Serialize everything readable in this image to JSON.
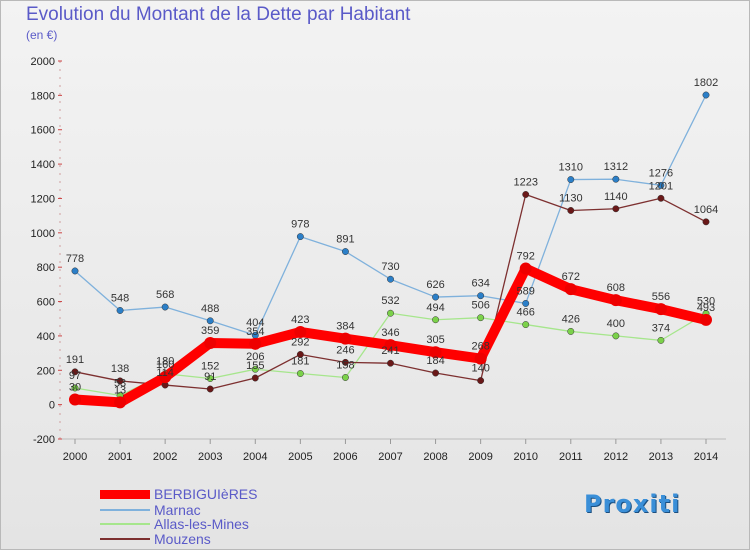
{
  "title": "Evolution du Montant de la Dette par Habitant",
  "subtitle": "(en €)",
  "logo_text": "Proxiti",
  "chart_data": {
    "type": "line",
    "x": [
      2000,
      2001,
      2002,
      2003,
      2004,
      2005,
      2006,
      2007,
      2008,
      2009,
      2010,
      2011,
      2012,
      2013,
      2014
    ],
    "ylim": [
      -200,
      2000
    ],
    "yticks": [
      -200,
      0,
      200,
      400,
      600,
      800,
      1000,
      1200,
      1400,
      1600,
      1800,
      2000
    ],
    "grid": "none",
    "legend": "bottom-left",
    "series": [
      {
        "name": "BERBIGUIèRES",
        "color": "#ff0000",
        "point_color": "#ee0000",
        "width": 10,
        "values": [
          30,
          13,
          160,
          359,
          354,
          423,
          384,
          346,
          305,
          268,
          792,
          672,
          608,
          556,
          493
        ],
        "labels": [
          "30",
          "13",
          "160",
          "359",
          "354",
          "423",
          "384",
          "346",
          "305",
          "268",
          "792",
          "672",
          "608",
          "556",
          "493"
        ]
      },
      {
        "name": "Marnac",
        "color": "#7fb1dc",
        "point_color": "#2b7fc8",
        "width": 1.3,
        "values": [
          778,
          548,
          568,
          488,
          404,
          978,
          891,
          730,
          626,
          634,
          589,
          1310,
          1312,
          1276,
          1802
        ],
        "labels": [
          "778",
          "548",
          "568",
          "488",
          "404",
          "978",
          "891",
          "730",
          "626",
          "634",
          "589",
          "1310",
          "1312",
          "1276",
          "1802"
        ]
      },
      {
        "name": "Allas-les-Mines",
        "color": "#a6e68c",
        "point_color": "#7bd14a",
        "width": 1.3,
        "values": [
          97,
          53,
          180,
          152,
          206,
          181,
          158,
          532,
          494,
          506,
          466,
          426,
          400,
          374,
          530
        ],
        "labels": [
          "97",
          "53",
          "180",
          "152",
          "206",
          "181",
          "158",
          "532",
          "494",
          "506",
          "466",
          "426",
          "400",
          "374",
          "530"
        ]
      },
      {
        "name": "Mouzens",
        "color": "#7d3030",
        "point_color": "#6a1818",
        "width": 1.3,
        "values": [
          191,
          138,
          114,
          91,
          155,
          292,
          246,
          241,
          184,
          140,
          1223,
          1130,
          1140,
          1201,
          1064
        ],
        "labels": [
          "191",
          "138",
          "114",
          "91",
          "155",
          "292",
          "246",
          "241",
          "184",
          "140",
          "1223",
          "1130",
          "1140",
          "1201",
          "1064"
        ]
      }
    ]
  }
}
